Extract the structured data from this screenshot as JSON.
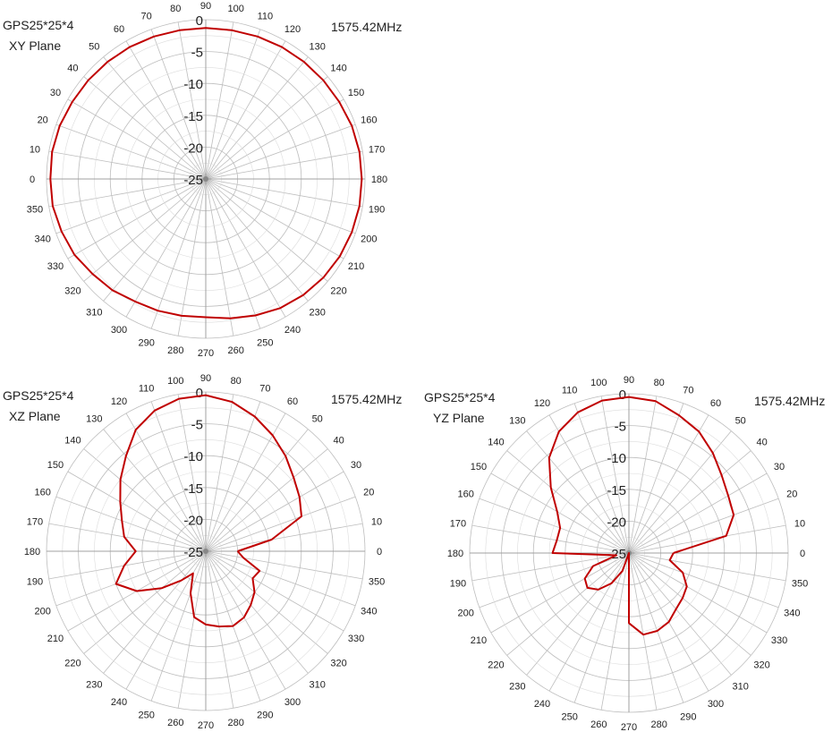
{
  "chart_data": [
    {
      "type": "polar",
      "title": "GPS25*25*4",
      "subtitle": "XY Plane",
      "frequency": "1575.42MHz",
      "r_ticks": [
        0,
        -5,
        -10,
        -15,
        -20,
        -25
      ],
      "r_range": [
        -25,
        0
      ],
      "angle_label_offset": 270,
      "angle_direction": "counterclockwise",
      "grid": true,
      "series": [
        {
          "color": "#c00000",
          "theta": [
            0,
            10,
            20,
            30,
            40,
            50,
            60,
            70,
            80,
            90,
            100,
            110,
            120,
            130,
            140,
            150,
            160,
            170,
            180,
            190,
            200,
            210,
            220,
            230,
            240,
            250,
            260,
            270,
            280,
            290,
            300,
            310,
            320,
            330,
            340,
            350,
            360
          ],
          "r": [
            -0.6,
            -0.5,
            -0.6,
            -0.8,
            -0.9,
            -1.0,
            -1.1,
            -1.2,
            -1.3,
            -1.3,
            -1.3,
            -1.2,
            -1.1,
            -1.0,
            -0.9,
            -0.8,
            -0.6,
            -0.5,
            -0.5,
            -0.5,
            -0.6,
            -0.7,
            -0.9,
            -1.2,
            -1.6,
            -2.2,
            -2.8,
            -3.3,
            -3.2,
            -3.0,
            -2.8,
            -2.2,
            -1.8,
            -1.2,
            -0.9,
            -0.6,
            -0.6
          ]
        }
      ]
    },
    {
      "type": "polar",
      "title": "GPS25*25*4",
      "subtitle": "XZ Plane",
      "frequency": "1575.42MHz",
      "r_ticks": [
        0,
        -5,
        -10,
        -15,
        -20,
        -25
      ],
      "r_range": [
        -25,
        0
      ],
      "angle_label_offset": 90,
      "angle_direction": "clockwise",
      "grid": true,
      "series": [
        {
          "color": "#c00000",
          "theta": [
            0,
            10,
            20,
            30,
            40,
            50,
            60,
            70,
            80,
            90,
            100,
            110,
            120,
            130,
            140,
            150,
            160,
            170,
            180,
            190,
            200,
            210,
            220,
            230,
            240,
            250,
            260,
            270,
            280,
            290,
            300,
            310,
            320,
            330,
            340,
            350,
            360
          ],
          "r": [
            -20.0,
            -14.5,
            -9.0,
            -8.0,
            -7.0,
            -5.5,
            -4.0,
            -2.5,
            -1.2,
            -0.5,
            -0.7,
            -1.5,
            -3.0,
            -5.5,
            -7.5,
            -9.5,
            -11.0,
            -12.0,
            -14.0,
            -12.0,
            -10.0,
            -12.5,
            -16.0,
            -19.0,
            -21.0,
            -18.0,
            -14.5,
            -13.5,
            -13.0,
            -12.5,
            -13.0,
            -14.0,
            -15.0,
            -16.5,
            -16.0,
            -19.0,
            -20.0
          ]
        }
      ]
    },
    {
      "type": "polar",
      "title": "GPS25*25*4",
      "subtitle": "YZ Plane",
      "frequency": "1575.42MHz",
      "r_ticks": [
        0,
        -5,
        -10,
        -15,
        -20,
        -25
      ],
      "r_range": [
        -25,
        0
      ],
      "angle_label_offset": 90,
      "angle_direction": "clockwise",
      "grid": true,
      "series": [
        {
          "color": "#c00000",
          "theta": [
            0,
            10,
            20,
            30,
            40,
            50,
            60,
            70,
            80,
            90,
            100,
            110,
            120,
            130,
            140,
            150,
            160,
            170,
            180,
            190,
            200,
            210,
            220,
            230,
            240,
            250,
            260,
            270,
            280,
            290,
            300,
            310,
            320,
            330,
            340,
            350,
            360
          ],
          "r": [
            -18.0,
            -9.5,
            -7.5,
            -7.0,
            -6.0,
            -4.5,
            -3.0,
            -2.0,
            -0.8,
            -0.5,
            -0.7,
            -1.5,
            -3.0,
            -5.5,
            -9.0,
            -12.0,
            -13.5,
            -13.5,
            -13.0,
            -23.0,
            -19.0,
            -17.0,
            -16.5,
            -17.5,
            -19.5,
            -22.0,
            -25.0,
            -14.0,
            -12.0,
            -12.0,
            -12.5,
            -13.5,
            -14.0,
            -14.5,
            -16.0,
            -18.5,
            -18.0
          ]
        }
      ]
    }
  ]
}
